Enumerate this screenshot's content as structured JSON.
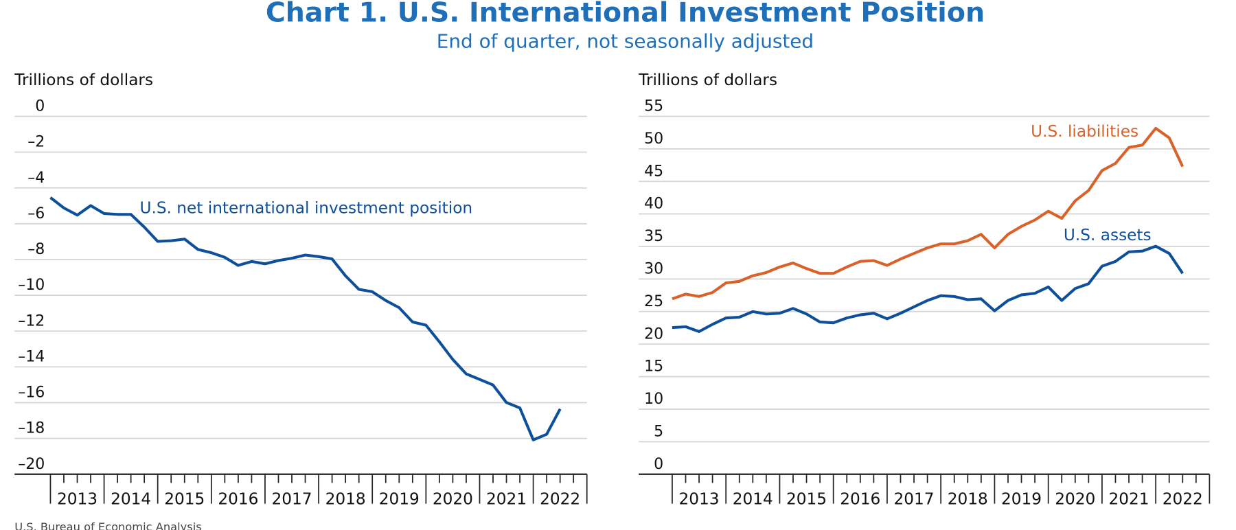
{
  "title": "Chart 1. U.S. International Investment Position",
  "subtitle": "End of quarter, not seasonally adjusted",
  "source": "U.S. Bureau of Economic Analysis",
  "chart_data": [
    {
      "type": "line",
      "y_label": "Trillions of dollars",
      "x_labels": [
        "2013",
        "2014",
        "2015",
        "2016",
        "2017",
        "2018",
        "2019",
        "2020",
        "2021",
        "2022"
      ],
      "ylim": [
        -20,
        0
      ],
      "yticks": [
        0,
        {
          "value": -2,
          "label": "–2"
        },
        {
          "value": -4,
          "label": "–4"
        },
        {
          "value": -6,
          "label": "–6"
        },
        {
          "value": -8,
          "label": "–8"
        },
        {
          "value": -10,
          "label": "–10"
        },
        {
          "value": -12,
          "label": "–12"
        },
        {
          "value": -14,
          "label": "–14"
        },
        {
          "value": -16,
          "label": "–16"
        },
        {
          "value": -18,
          "label": "–18"
        },
        {
          "value": -20,
          "label": "–20"
        }
      ],
      "grid": true,
      "series": [
        {
          "name": "U.S. net international investment position",
          "color": "#0d4f9a",
          "values": [
            -4.54,
            -5.12,
            -5.52,
            -4.99,
            -5.43,
            -5.48,
            -5.48,
            -6.19,
            -6.99,
            -6.95,
            -6.86,
            -7.44,
            -7.62,
            -7.88,
            -8.33,
            -8.11,
            -8.24,
            -8.06,
            -7.93,
            -7.75,
            -7.84,
            -7.97,
            -8.91,
            -9.67,
            -9.8,
            -10.29,
            -10.69,
            -11.49,
            -11.67,
            -12.6,
            -13.59,
            -14.39,
            -14.7,
            -15.01,
            -15.99,
            -16.3,
            -18.08,
            -17.77,
            -16.35
          ]
        }
      ]
    },
    {
      "type": "line",
      "y_label": "Trillions of dollars",
      "x_labels": [
        "2013",
        "2014",
        "2015",
        "2016",
        "2017",
        "2018",
        "2019",
        "2020",
        "2021",
        "2022"
      ],
      "ylim": [
        0,
        55
      ],
      "yticks": [
        0,
        5,
        10,
        15,
        20,
        25,
        30,
        35,
        40,
        45,
        50,
        55
      ],
      "grid": true,
      "series": [
        {
          "name": "U.S. liabilities",
          "color": "#d9622b",
          "values": [
            26.95,
            27.68,
            27.32,
            27.93,
            29.4,
            29.64,
            30.5,
            30.99,
            31.85,
            32.46,
            31.6,
            30.87,
            30.87,
            31.85,
            32.71,
            32.83,
            32.09,
            33.07,
            33.93,
            34.79,
            35.4,
            35.4,
            35.89,
            36.87,
            34.79,
            36.87,
            38.1,
            39.07,
            40.42,
            39.32,
            42.01,
            43.61,
            46.67,
            47.77,
            50.22,
            50.59,
            53.16,
            51.69,
            47.28
          ]
        },
        {
          "name": "U.S. assets",
          "color": "#0d4f9a",
          "values": [
            22.54,
            22.66,
            21.93,
            23.03,
            24.01,
            24.13,
            24.99,
            24.62,
            24.74,
            25.48,
            24.62,
            23.4,
            23.27,
            24.01,
            24.5,
            24.74,
            23.89,
            24.74,
            25.72,
            26.7,
            27.44,
            27.32,
            26.83,
            26.95,
            25.11,
            26.7,
            27.56,
            27.81,
            28.79,
            26.7,
            28.54,
            29.28,
            31.97,
            32.71,
            34.18,
            34.3,
            35.03,
            33.93,
            30.87
          ]
        }
      ]
    }
  ]
}
